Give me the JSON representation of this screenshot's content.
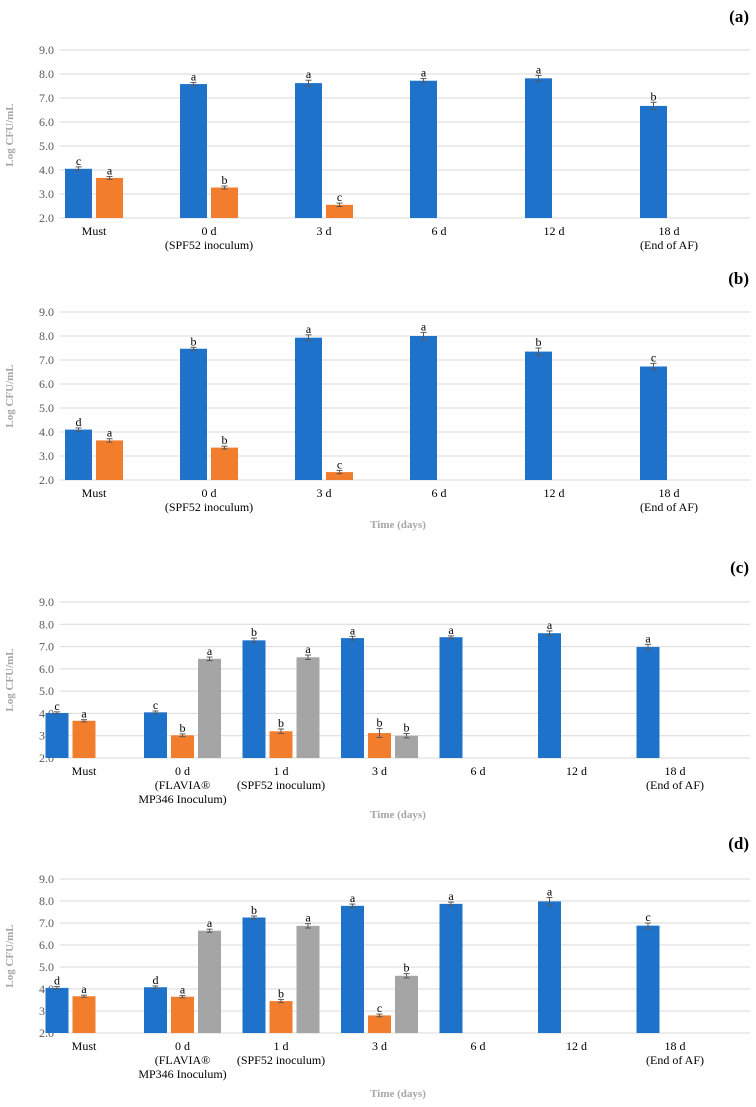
{
  "chart_data": [
    {
      "panel": "(a)",
      "type": "bar",
      "ylabel": "Log CFU/mL",
      "xlabel": "",
      "ylim": [
        2.0,
        9.0
      ],
      "yticks": [
        "2.0",
        "3.0",
        "4.0",
        "5.0",
        "6.0",
        "7.0",
        "8.0",
        "9.0"
      ],
      "categories": [
        [
          "Must"
        ],
        [
          "0 d",
          "(SPF52 inoculum)"
        ],
        [
          "3 d"
        ],
        [
          "6 d"
        ],
        [
          "12 d"
        ],
        [
          "18 d",
          "(End of AF)"
        ]
      ],
      "series": [
        {
          "name": "series-blue",
          "color": "#1f72c9",
          "values": [
            4.05,
            7.58,
            7.62,
            7.72,
            7.82,
            6.67
          ],
          "errors": [
            0.08,
            0.07,
            0.12,
            0.09,
            0.12,
            0.15
          ],
          "letters": [
            "c",
            "a",
            "a",
            "a",
            "a",
            "b"
          ]
        },
        {
          "name": "series-orange",
          "color": "#f27e2d",
          "values": [
            3.67,
            3.27,
            2.55,
            null,
            null,
            null
          ],
          "errors": [
            0.06,
            0.06,
            0.07,
            null,
            null,
            null
          ],
          "letters": [
            "a",
            "b",
            "c",
            null,
            null,
            null
          ]
        }
      ]
    },
    {
      "panel": "(b)",
      "type": "bar",
      "ylabel": "Log CFU/mL",
      "xlabel": "Time (days)",
      "ylim": [
        2.0,
        9.0
      ],
      "yticks": [
        "2.0",
        "3.0",
        "4.0",
        "5.0",
        "6.0",
        "7.0",
        "8.0",
        "9.0"
      ],
      "categories": [
        [
          "Must"
        ],
        [
          "0 d",
          "(SPF52 inoculum)"
        ],
        [
          "3 d"
        ],
        [
          "6 d"
        ],
        [
          "12 d"
        ],
        [
          "18 d",
          "(End of AF)"
        ]
      ],
      "series": [
        {
          "name": "series-blue",
          "color": "#1f72c9",
          "values": [
            4.1,
            7.47,
            7.93,
            8.0,
            7.35,
            6.73
          ],
          "errors": [
            0.07,
            0.06,
            0.12,
            0.15,
            0.15,
            0.13
          ],
          "letters": [
            "d",
            "b",
            "a",
            "a",
            "b",
            "c"
          ]
        },
        {
          "name": "series-orange",
          "color": "#f27e2d",
          "values": [
            3.65,
            3.35,
            2.33,
            null,
            null,
            null
          ],
          "errors": [
            0.07,
            0.06,
            0.07,
            null,
            null,
            null
          ],
          "letters": [
            "a",
            "b",
            "c",
            null,
            null,
            null
          ]
        }
      ]
    },
    {
      "panel": "(c)",
      "type": "bar",
      "ylabel": "Log CFU/mL",
      "xlabel": "Time  (days)",
      "ylim": [
        2.0,
        9.0
      ],
      "yticks": [
        "2.0",
        "3.0",
        "4.0",
        "5.0",
        "6.0",
        "7.0",
        "8.0",
        "9.0"
      ],
      "categories": [
        [
          "Must"
        ],
        [
          "0 d",
          "(FLAVIA®",
          "MP346 Inoculum)"
        ],
        [
          "1 d",
          "(SPF52 inoculum)"
        ],
        [
          "3 d"
        ],
        [
          "6 d"
        ],
        [
          "12 d"
        ],
        [
          "18 d",
          "(End of AF)"
        ]
      ],
      "series": [
        {
          "name": "series-blue",
          "color": "#1f72c9",
          "values": [
            4.02,
            4.05,
            7.28,
            7.38,
            7.42,
            7.6,
            6.98
          ],
          "errors": [
            0.05,
            0.06,
            0.1,
            0.08,
            0.06,
            0.1,
            0.12
          ],
          "letters": [
            "c",
            "c",
            "b",
            "a",
            "a",
            "a",
            "a"
          ]
        },
        {
          "name": "series-orange",
          "color": "#f27e2d",
          "values": [
            3.67,
            3.02,
            3.2,
            3.12,
            null,
            null,
            null
          ],
          "errors": [
            0.05,
            0.06,
            0.1,
            0.2,
            null,
            null,
            null
          ],
          "letters": [
            "a",
            "b",
            "b",
            "b",
            null,
            null,
            null
          ]
        },
        {
          "name": "series-gray",
          "color": "#a5a5a5",
          "values": [
            null,
            6.45,
            6.52,
            3.0,
            null,
            null,
            null
          ],
          "errors": [
            null,
            0.08,
            0.1,
            0.1,
            null,
            null,
            null
          ],
          "letters": [
            null,
            "a",
            "a",
            "b",
            null,
            null,
            null
          ]
        }
      ]
    },
    {
      "panel": "(d)",
      "type": "bar",
      "ylabel": "Log CFU/mL",
      "xlabel": "Time (days)",
      "ylim": [
        2.0,
        9.0
      ],
      "yticks": [
        "2.0",
        "3.0",
        "4.0",
        "5.0",
        "6.0",
        "7.0",
        "8.0",
        "9.0"
      ],
      "categories": [
        [
          "Must"
        ],
        [
          "0 d",
          "(FLAVIA®",
          "MP346 Inoculum)"
        ],
        [
          "1 d",
          "(SPF52 inoculum)"
        ],
        [
          "3 d"
        ],
        [
          "6 d"
        ],
        [
          "12 d"
        ],
        [
          "18 d",
          "(End of AF)"
        ]
      ],
      "series": [
        {
          "name": "series-blue",
          "color": "#1f72c9",
          "values": [
            4.05,
            4.08,
            7.25,
            7.78,
            7.87,
            7.98,
            6.88
          ],
          "errors": [
            0.06,
            0.06,
            0.07,
            0.08,
            0.08,
            0.18,
            0.12
          ],
          "letters": [
            "d",
            "d",
            "b",
            "a",
            "a",
            "a",
            "c"
          ]
        },
        {
          "name": "series-orange",
          "color": "#f27e2d",
          "values": [
            3.67,
            3.65,
            3.45,
            2.8,
            null,
            null,
            null
          ],
          "errors": [
            0.05,
            0.05,
            0.07,
            0.06,
            null,
            null,
            null
          ],
          "letters": [
            "a",
            "a",
            "b",
            "c",
            null,
            null,
            null
          ]
        },
        {
          "name": "series-gray",
          "color": "#a5a5a5",
          "values": [
            null,
            6.65,
            6.87,
            4.6,
            null,
            null,
            null
          ],
          "errors": [
            null,
            0.07,
            0.1,
            0.1,
            null,
            null,
            null
          ],
          "letters": [
            null,
            "a",
            "a",
            "b",
            null,
            null,
            null
          ]
        }
      ]
    }
  ]
}
